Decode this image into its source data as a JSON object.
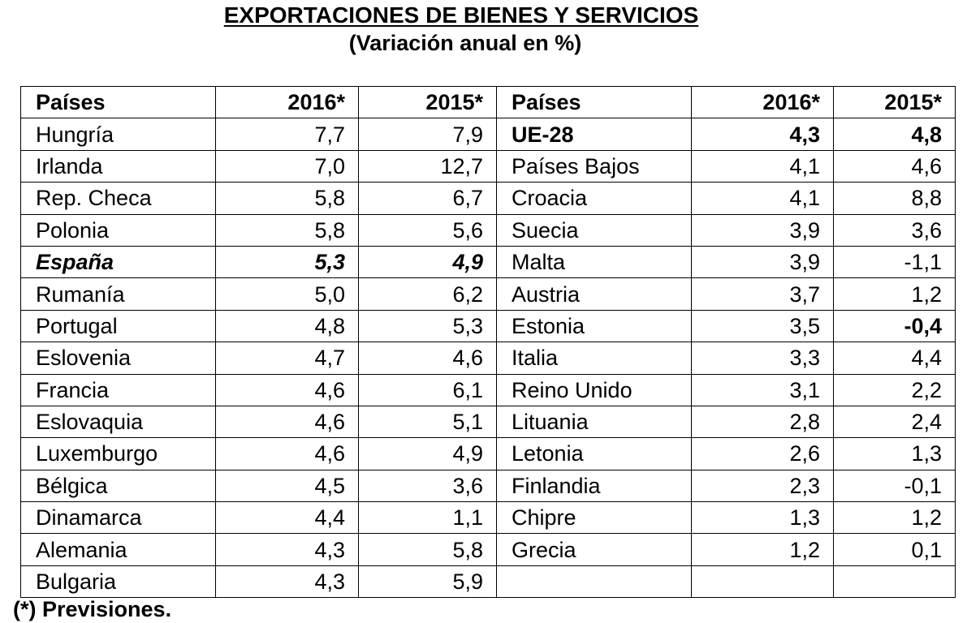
{
  "title": "EXPORTACIONES DE BIENES Y SERVICIOS",
  "subtitle": "(Variación anual en %)",
  "header": {
    "country": "Países",
    "y2016": "2016*",
    "y2015": "2015*"
  },
  "left": [
    {
      "country": "Hungría",
      "v2016": "7,7",
      "v2015": "7,9"
    },
    {
      "country": "Irlanda",
      "v2016": "7,0",
      "v2015": "12,7"
    },
    {
      "country": "Rep. Checa",
      "v2016": "5,8",
      "v2015": "6,7"
    },
    {
      "country": "Polonia",
      "v2016": "5,8",
      "v2015": "5,6"
    },
    {
      "country": "España",
      "v2016": "5,3",
      "v2015": "4,9"
    },
    {
      "country": "Rumanía",
      "v2016": "5,0",
      "v2015": "6,2"
    },
    {
      "country": "Portugal",
      "v2016": "4,8",
      "v2015": "5,3"
    },
    {
      "country": "Eslovenia",
      "v2016": "4,7",
      "v2015": "4,6"
    },
    {
      "country": "Francia",
      "v2016": "4,6",
      "v2015": "6,1"
    },
    {
      "country": "Eslovaquia",
      "v2016": "4,6",
      "v2015": "5,1"
    },
    {
      "country": "Luxemburgo",
      "v2016": "4,6",
      "v2015": "4,9"
    },
    {
      "country": "Bélgica",
      "v2016": "4,5",
      "v2015": "3,6"
    },
    {
      "country": "Dinamarca",
      "v2016": "4,4",
      "v2015": "1,1"
    },
    {
      "country": "Alemania",
      "v2016": "4,3",
      "v2015": "5,8"
    },
    {
      "country": "Bulgaria",
      "v2016": "4,3",
      "v2015": "5,9"
    }
  ],
  "right": [
    {
      "country": "UE-28",
      "v2016": "4,3",
      "v2015": "4,8"
    },
    {
      "country": "Países Bajos",
      "v2016": "4,1",
      "v2015": "4,6"
    },
    {
      "country": "Croacia",
      "v2016": "4,1",
      "v2015": "8,8"
    },
    {
      "country": "Suecia",
      "v2016": "3,9",
      "v2015": "3,6"
    },
    {
      "country": "Malta",
      "v2016": "3,9",
      "v2015": "-1,1"
    },
    {
      "country": "Austria",
      "v2016": "3,7",
      "v2015": "1,2"
    },
    {
      "country": "Estonia",
      "v2016": "3,5",
      "v2015": "-0,4"
    },
    {
      "country": "Italia",
      "v2016": "3,3",
      "v2015": "4,4"
    },
    {
      "country": "Reino Unido",
      "v2016": "3,1",
      "v2015": "2,2"
    },
    {
      "country": "Lituania",
      "v2016": "2,8",
      "v2015": "2,4"
    },
    {
      "country": "Letonia",
      "v2016": "2,6",
      "v2015": "1,3"
    },
    {
      "country": "Finlandia",
      "v2016": "2,3",
      "v2015": "-0,1"
    },
    {
      "country": "Chipre",
      "v2016": "1,3",
      "v2015": "1,2"
    },
    {
      "country": "Grecia",
      "v2016": "1,2",
      "v2015": "0,1"
    }
  ],
  "footnote": "(*) Previsiones."
}
